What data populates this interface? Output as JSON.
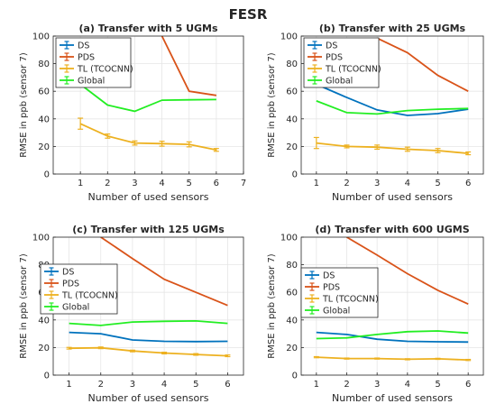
{
  "figure_title": "FESR",
  "colors": {
    "DS": "#0072BD",
    "PDS": "#D95319",
    "TL (TCOCNN)": "#EDB120",
    "Global": "#22EE22",
    "axis": "#262626",
    "grid": "#E6E6E6"
  },
  "chart_data": [
    {
      "type": "line",
      "title": "(a) Transfer with 5 UGMs",
      "xlabel": "Number of used sensors",
      "ylabel": "RMSE in ppb (sensor 7)",
      "xlim": [
        0,
        7
      ],
      "ylim": [
        0,
        100
      ],
      "xticks": [
        1,
        2,
        3,
        4,
        5,
        6,
        7
      ],
      "yticks": [
        0,
        20,
        40,
        60,
        80,
        100
      ],
      "grid": true,
      "legend_position": "top-left",
      "x": [
        1,
        2,
        3,
        4,
        5,
        6
      ],
      "series": [
        {
          "name": "DS",
          "values": [
            null,
            null,
            null,
            null,
            null,
            null
          ],
          "errors": null
        },
        {
          "name": "PDS",
          "values": [
            null,
            null,
            null,
            100,
            60,
            57
          ],
          "errors": null
        },
        {
          "name": "TL (TCOCNN)",
          "values": [
            36.5,
            27.5,
            22.5,
            22.0,
            21.5,
            17.5
          ],
          "errors": [
            4.0,
            1.5,
            1.5,
            1.8,
            1.8,
            1.0
          ]
        },
        {
          "name": "Global",
          "values": [
            65,
            50,
            45.5,
            53.5,
            53.8,
            54.0
          ],
          "errors": null
        }
      ]
    },
    {
      "type": "line",
      "title": "(b) Transfer with 25 UGMs",
      "xlabel": "Number of used sensors",
      "ylabel": "RMSE in ppb (sensor 7)",
      "xlim": [
        0.5,
        6.5
      ],
      "ylim": [
        0,
        100
      ],
      "xticks": [
        1,
        2,
        3,
        4,
        5,
        6
      ],
      "yticks": [
        0,
        20,
        40,
        60,
        80,
        100
      ],
      "grid": true,
      "legend_position": "top-left",
      "x": [
        1,
        2,
        3,
        4,
        5,
        6
      ],
      "series": [
        {
          "name": "DS",
          "values": [
            65,
            55.5,
            46.5,
            42.5,
            43.8,
            47.0
          ],
          "errors": null
        },
        {
          "name": "PDS",
          "values": [
            null,
            null,
            98.5,
            88.0,
            71.5,
            60.0
          ],
          "errors": null
        },
        {
          "name": "TL (TCOCNN)",
          "values": [
            22.5,
            20.0,
            19.5,
            18.0,
            17.0,
            15.0
          ],
          "errors": [
            4.0,
            1.0,
            1.5,
            1.5,
            1.5,
            1.0
          ]
        },
        {
          "name": "Global",
          "values": [
            53,
            44.5,
            43.5,
            46.0,
            47.0,
            47.5
          ],
          "errors": null
        }
      ]
    },
    {
      "type": "line",
      "title": "(c) Transfer with 125 UGMs",
      "xlabel": "Number of used sensors",
      "ylabel": "RMSE in ppb (sensor 7)",
      "xlim": [
        0.5,
        6.5
      ],
      "ylim": [
        0,
        100
      ],
      "xticks": [
        1,
        2,
        3,
        4,
        5,
        6
      ],
      "yticks": [
        0,
        20,
        40,
        60,
        80,
        100
      ],
      "grid": true,
      "legend_position": "left",
      "x": [
        1,
        2,
        3,
        4,
        5,
        6
      ],
      "series": [
        {
          "name": "DS",
          "values": [
            31,
            30,
            25.5,
            24.5,
            24.3,
            24.5
          ],
          "errors": null
        },
        {
          "name": "PDS",
          "values": [
            null,
            100,
            84.5,
            69.5,
            60.0,
            50.5
          ],
          "errors": null
        },
        {
          "name": "TL (TCOCNN)",
          "values": [
            19.5,
            19.8,
            17.5,
            16.0,
            15.0,
            14.0
          ],
          "errors": [
            0.6,
            0.6,
            0.6,
            0.6,
            0.6,
            0.6
          ]
        },
        {
          "name": "Global",
          "values": [
            37.5,
            36.0,
            38.5,
            39.0,
            39.3,
            37.5
          ],
          "errors": null
        }
      ]
    },
    {
      "type": "line",
      "title": "(d) Transfer with 600 UGMS",
      "xlabel": "Number of used sensors",
      "ylabel": "RMSE in ppb (sensor 7)",
      "xlim": [
        0.5,
        6.5
      ],
      "ylim": [
        0,
        100
      ],
      "xticks": [
        1,
        2,
        3,
        4,
        5,
        6
      ],
      "yticks": [
        0,
        20,
        40,
        60,
        80,
        100
      ],
      "grid": true,
      "legend_position": "left",
      "x": [
        1,
        2,
        3,
        4,
        5,
        6
      ],
      "series": [
        {
          "name": "DS",
          "values": [
            31,
            29.5,
            26.0,
            24.5,
            24.2,
            24.0
          ],
          "errors": null
        },
        {
          "name": "PDS",
          "values": [
            null,
            100,
            87.0,
            73.5,
            61.5,
            51.5
          ],
          "errors": null
        },
        {
          "name": "TL (TCOCNN)",
          "values": [
            13.0,
            12.0,
            12.0,
            11.5,
            11.8,
            11.0
          ],
          "errors": [
            0.4,
            0.4,
            0.4,
            0.4,
            0.4,
            0.4
          ]
        },
        {
          "name": "Global",
          "values": [
            26.5,
            27.0,
            29.5,
            31.5,
            32.0,
            30.5
          ],
          "errors": null
        }
      ]
    }
  ]
}
